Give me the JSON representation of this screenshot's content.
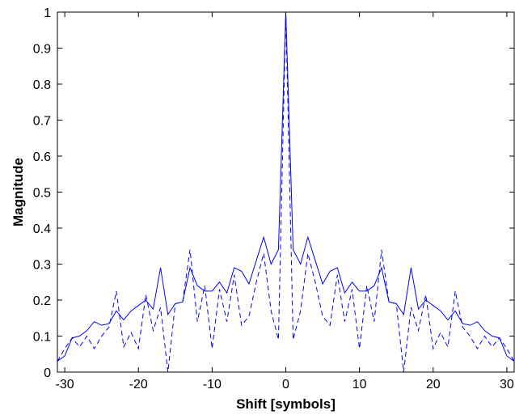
{
  "chart_data": {
    "type": "line",
    "title": "",
    "xlabel": "Shift [symbols]",
    "ylabel": "Magnitude",
    "xlim": [
      -31,
      31
    ],
    "ylim": [
      0,
      1
    ],
    "xticks": [
      -30,
      -20,
      -10,
      0,
      10,
      20,
      30
    ],
    "yticks": [
      0,
      0.1,
      0.2,
      0.3,
      0.4,
      0.5,
      0.6,
      0.7,
      0.8,
      0.9,
      1
    ],
    "grid": false,
    "legend": "none",
    "series": [
      {
        "style": "solid",
        "color": "#0000ff",
        "x": [
          -31,
          -30,
          -29,
          -28,
          -27,
          -26,
          -25,
          -24,
          -23,
          -22,
          -21,
          -20,
          -19,
          -18,
          -17,
          -16,
          -15,
          -14,
          -13,
          -12,
          -11,
          -10,
          -9,
          -8,
          -7,
          -6,
          -5,
          -4,
          -3,
          -2,
          -1,
          0,
          1,
          2,
          3,
          4,
          5,
          6,
          7,
          8,
          9,
          10,
          11,
          12,
          13,
          14,
          15,
          16,
          17,
          18,
          19,
          20,
          21,
          22,
          23,
          24,
          25,
          26,
          27,
          28,
          29,
          30,
          31
        ],
        "y": [
          0.03,
          0.045,
          0.095,
          0.1,
          0.115,
          0.14,
          0.13,
          0.135,
          0.17,
          0.145,
          0.17,
          0.185,
          0.2,
          0.175,
          0.29,
          0.16,
          0.19,
          0.195,
          0.29,
          0.24,
          0.225,
          0.225,
          0.25,
          0.22,
          0.29,
          0.28,
          0.245,
          0.31,
          0.375,
          0.3,
          0.34,
          1.0,
          0.34,
          0.3,
          0.375,
          0.31,
          0.245,
          0.28,
          0.29,
          0.22,
          0.25,
          0.225,
          0.225,
          0.24,
          0.29,
          0.195,
          0.19,
          0.16,
          0.29,
          0.175,
          0.2,
          0.185,
          0.17,
          0.145,
          0.17,
          0.135,
          0.13,
          0.14,
          0.115,
          0.1,
          0.095,
          0.045,
          0.03
        ]
      },
      {
        "style": "dashed",
        "color": "#0000ff",
        "x": [
          -31,
          -30,
          -29,
          -28,
          -27,
          -26,
          -25,
          -24,
          -23,
          -22,
          -21,
          -20,
          -19,
          -18,
          -17,
          -16,
          -15,
          -14,
          -13,
          -12,
          -11,
          -10,
          -9,
          -8,
          -7,
          -6,
          -5,
          -4,
          -3,
          -2,
          -1,
          0,
          1,
          2,
          3,
          4,
          5,
          6,
          7,
          8,
          9,
          10,
          11,
          12,
          13,
          14,
          15,
          16,
          17,
          18,
          19,
          20,
          21,
          22,
          23,
          24,
          25,
          26,
          27,
          28,
          29,
          30,
          31
        ],
        "y": [
          0.03,
          0.065,
          0.095,
          0.07,
          0.1,
          0.065,
          0.1,
          0.125,
          0.225,
          0.07,
          0.11,
          0.065,
          0.215,
          0.115,
          0.18,
          0.0,
          0.19,
          0.195,
          0.34,
          0.14,
          0.24,
          0.065,
          0.23,
          0.14,
          0.27,
          0.13,
          0.155,
          0.25,
          0.33,
          0.17,
          0.09,
          1.0,
          0.09,
          0.17,
          0.33,
          0.25,
          0.155,
          0.13,
          0.27,
          0.14,
          0.23,
          0.065,
          0.24,
          0.14,
          0.34,
          0.195,
          0.19,
          0.0,
          0.18,
          0.115,
          0.215,
          0.065,
          0.11,
          0.07,
          0.225,
          0.125,
          0.1,
          0.065,
          0.1,
          0.07,
          0.095,
          0.065,
          0.03
        ]
      }
    ]
  }
}
